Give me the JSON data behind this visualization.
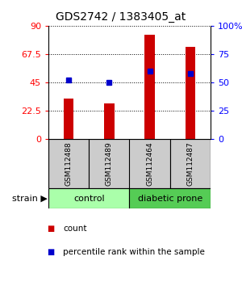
{
  "title": "GDS2742 / 1383405_at",
  "samples": [
    "GSM112488",
    "GSM112489",
    "GSM112464",
    "GSM112487"
  ],
  "groups": [
    "control",
    "control",
    "diabetic prone",
    "diabetic prone"
  ],
  "counts": [
    32,
    28,
    83,
    73
  ],
  "percentiles": [
    52,
    50,
    60,
    58
  ],
  "left_yticks": [
    0,
    22.5,
    45,
    67.5,
    90
  ],
  "right_yticks": [
    0,
    25,
    50,
    75,
    100
  ],
  "right_yticklabels": [
    "0",
    "25",
    "50",
    "75",
    "100%"
  ],
  "bar_color": "#cc0000",
  "dot_color": "#0000cc",
  "control_color": "#aaffaa",
  "diabetic_color": "#55cc55",
  "sample_box_color": "#cccccc",
  "legend_count": "count",
  "legend_pct": "percentile rank within the sample"
}
